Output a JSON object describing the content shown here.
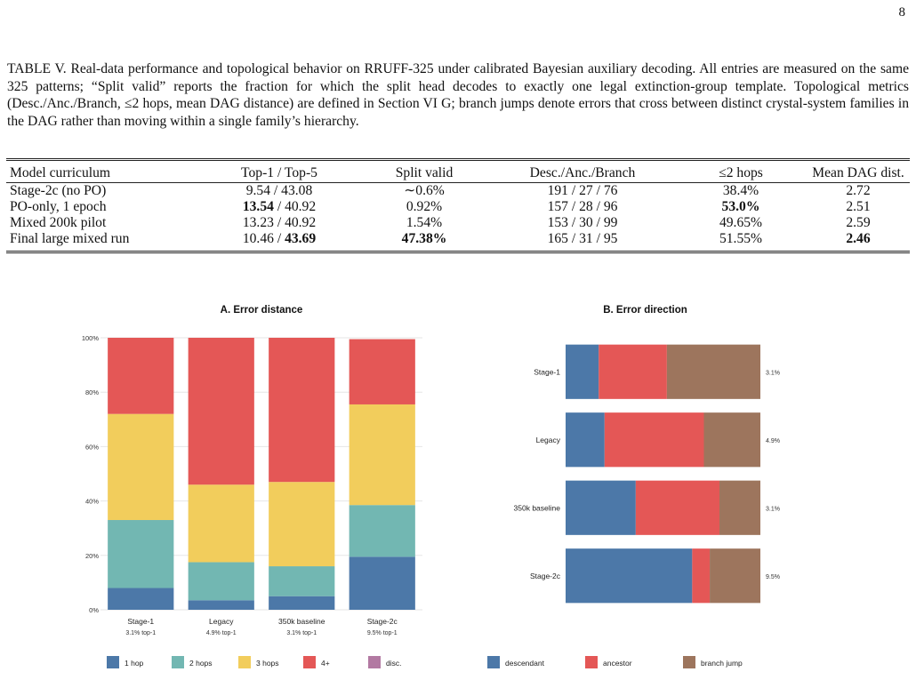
{
  "page_number": "8",
  "caption": {
    "label": "TABLE V.",
    "text": "Real-data performance and topological behavior on RRUFF-325 under calibrated Bayesian auxiliary decoding. All entries are measured on the same 325 patterns; “Split valid” reports the fraction for which the split head decodes to exactly one legal extinction-group template. Topological metrics (Desc./Anc./Branch, ≤2 hops, mean DAG distance) are defined in Section VI G; branch jumps denote errors that cross between distinct crystal-system families in the DAG rather than moving within a single family’s hierarchy."
  },
  "table": {
    "headers": [
      "Model curriculum",
      "Top-1 / Top-5",
      "Split valid",
      "Desc./Anc./Branch",
      "≤2 hops",
      "Mean DAG dist."
    ],
    "rows": [
      {
        "model": "Stage-2c (no PO)",
        "top1": "9.54",
        "top5": "43.08",
        "split": "∼0.6%",
        "dab": "191 / 27 / 76",
        "hops": "38.4%",
        "dag": "2.72",
        "b_top1": false,
        "b_top5": false,
        "b_split": false,
        "b_hops": false,
        "b_dag": false
      },
      {
        "model": "PO-only, 1 epoch",
        "top1": "13.54",
        "top5": "40.92",
        "split": "0.92%",
        "dab": "157 / 28 / 96",
        "hops": "53.0%",
        "dag": "2.51",
        "b_top1": true,
        "b_top5": false,
        "b_split": false,
        "b_hops": true,
        "b_dag": false
      },
      {
        "model": "Mixed 200k pilot",
        "top1": "13.23",
        "top5": "40.92",
        "split": "1.54%",
        "dab": "153 / 30 / 99",
        "hops": "49.65%",
        "dag": "2.59",
        "b_top1": false,
        "b_top5": false,
        "b_split": false,
        "b_hops": false,
        "b_dag": false
      },
      {
        "model": "Final large mixed run",
        "top1": "10.46",
        "top5": "43.69",
        "split": "47.38%",
        "dab": "165 / 31 / 95",
        "hops": "51.55%",
        "dag": "2.46",
        "b_top1": false,
        "b_top5": true,
        "b_split": true,
        "b_hops": false,
        "b_dag": true
      }
    ]
  },
  "chart_data": [
    {
      "type": "bar",
      "stacked": true,
      "title": "A. Error distance",
      "categories": [
        "Stage-1",
        "Legacy",
        "350k baseline",
        "Stage-2c"
      ],
      "sublabels": [
        "3.1% top-1",
        "4.9% top-1",
        "3.1% top-1",
        "9.5% top-1"
      ],
      "yticks": [
        "0%",
        "20%",
        "40%",
        "60%",
        "80%",
        "100%"
      ],
      "ylim": [
        0,
        100
      ],
      "grid": true,
      "series": [
        {
          "name": "1 hop",
          "color": "#4c78a8",
          "values": [
            8,
            3.5,
            5,
            19.5
          ]
        },
        {
          "name": "2 hops",
          "color": "#72b7b2",
          "values": [
            25,
            14,
            11,
            19
          ]
        },
        {
          "name": "3 hops",
          "color": "#f2cd5c",
          "values": [
            39,
            28.5,
            31,
            37
          ]
        },
        {
          "name": "4+",
          "color": "#e45756",
          "values": [
            28,
            54,
            53,
            24
          ]
        },
        {
          "name": "disc.",
          "color": "#b279a2",
          "values": [
            0,
            0,
            0,
            0
          ]
        }
      ]
    },
    {
      "type": "bar",
      "orientation": "horizontal",
      "stacked": true,
      "title": "B. Error direction",
      "categories": [
        "Stage-1",
        "Legacy",
        "350k baseline",
        "Stage-2c"
      ],
      "right_labels": [
        "3.1%",
        "4.9%",
        "3.1%",
        "9.5%"
      ],
      "xlim": [
        0,
        100
      ],
      "series": [
        {
          "name": "descendant",
          "color": "#4c78a8",
          "values": [
            17,
            20,
            36,
            65
          ]
        },
        {
          "name": "ancestor",
          "color": "#e45756",
          "values": [
            35,
            51,
            43,
            9
          ]
        },
        {
          "name": "branch jump",
          "color": "#9d755d",
          "values": [
            48,
            29,
            21,
            26
          ]
        }
      ]
    }
  ]
}
